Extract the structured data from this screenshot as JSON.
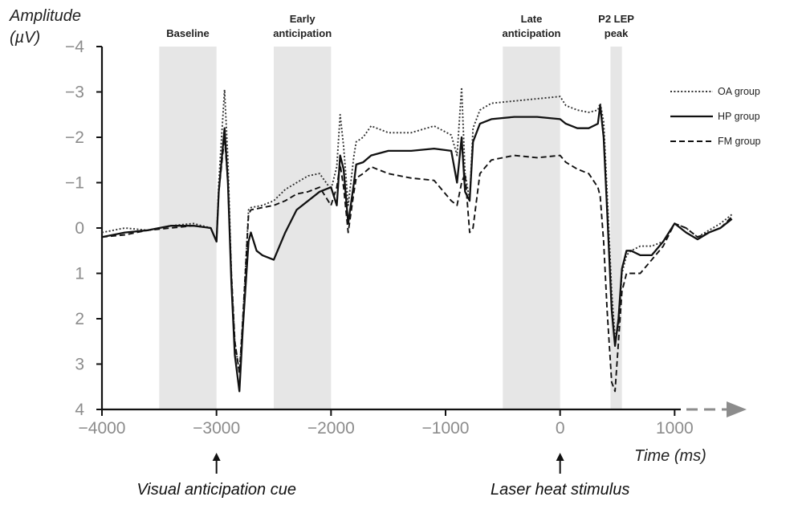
{
  "chart_data": {
    "type": "line",
    "title": "",
    "ylabel_lines": [
      "Amplitude",
      "(µV)"
    ],
    "xlabel": "Time (ms)",
    "xlim": [
      -4000,
      1500
    ],
    "ylim": [
      4,
      -4
    ],
    "y_inverted": true,
    "grid": false,
    "legend_position": "right",
    "x_ticks": [
      {
        "value": -4000,
        "label": "−4000"
      },
      {
        "value": -3000,
        "label": "−3000"
      },
      {
        "value": -2000,
        "label": "−2000"
      },
      {
        "value": -1000,
        "label": "−1000"
      },
      {
        "value": 0,
        "label": "0"
      },
      {
        "value": 1000,
        "label": "1000"
      }
    ],
    "y_ticks": [
      {
        "value": -4,
        "label": "−4"
      },
      {
        "value": -3,
        "label": "−3"
      },
      {
        "value": -2,
        "label": "−2"
      },
      {
        "value": -1,
        "label": "−1"
      },
      {
        "value": 0,
        "label": "0"
      },
      {
        "value": 1,
        "label": "1"
      },
      {
        "value": 2,
        "label": "2"
      },
      {
        "value": 3,
        "label": "3"
      },
      {
        "value": 4,
        "label": "4"
      }
    ],
    "shaded_regions": [
      {
        "label_lines": [
          "Baseline"
        ],
        "start": -3500,
        "end": -3000
      },
      {
        "label_lines": [
          "Early",
          "anticipation"
        ],
        "start": -2500,
        "end": -2000
      },
      {
        "label_lines": [
          "Late",
          "anticipation"
        ],
        "start": -500,
        "end": 0
      },
      {
        "label_lines": [
          "P2 LEP",
          "peak"
        ],
        "start": 440,
        "end": 540
      }
    ],
    "annotations": [
      {
        "text": "Visual anticipation cue",
        "x": -3000
      },
      {
        "text": "Laser heat stimulus",
        "x": 0
      }
    ],
    "series": [
      {
        "name": "OA group",
        "style": "dotted",
        "color": "#333333",
        "x": [
          -4000,
          -3800,
          -3600,
          -3400,
          -3200,
          -3050,
          -3000,
          -2980,
          -2930,
          -2900,
          -2870,
          -2840,
          -2800,
          -2770,
          -2720,
          -2700,
          -2600,
          -2500,
          -2400,
          -2300,
          -2200,
          -2100,
          -2000,
          -1950,
          -1920,
          -1890,
          -1850,
          -1800,
          -1780,
          -1720,
          -1650,
          -1500,
          -1300,
          -1100,
          -950,
          -900,
          -860,
          -830,
          -790,
          -760,
          -700,
          -600,
          -400,
          -200,
          0,
          50,
          150,
          250,
          330,
          350,
          380,
          410,
          450,
          480,
          510,
          540,
          580,
          620,
          700,
          800,
          900,
          1000,
          1100,
          1200,
          1300,
          1400,
          1500
        ],
        "y": [
          0.1,
          0.0,
          0.05,
          -0.05,
          -0.1,
          0.0,
          0.3,
          -1.0,
          -3.05,
          -1.5,
          1.0,
          2.5,
          3.2,
          2.0,
          -0.4,
          -0.45,
          -0.5,
          -0.6,
          -0.85,
          -1.0,
          -1.15,
          -1.2,
          -0.85,
          -1.35,
          -2.5,
          -1.8,
          -0.5,
          -1.6,
          -1.9,
          -2.0,
          -2.25,
          -2.1,
          -2.1,
          -2.25,
          -2.05,
          -1.6,
          -3.1,
          -1.2,
          -0.6,
          -2.2,
          -2.6,
          -2.75,
          -2.8,
          -2.85,
          -2.9,
          -2.7,
          -2.6,
          -2.55,
          -2.6,
          -2.75,
          -2.35,
          -0.8,
          1.4,
          2.4,
          2.2,
          1.0,
          0.6,
          0.5,
          0.4,
          0.4,
          0.3,
          -0.1,
          0.0,
          0.2,
          0.05,
          -0.1,
          -0.3
        ]
      },
      {
        "name": "HP group",
        "style": "solid",
        "color": "#111111",
        "x": [
          -4000,
          -3800,
          -3600,
          -3400,
          -3200,
          -3050,
          -3000,
          -2980,
          -2930,
          -2900,
          -2870,
          -2840,
          -2800,
          -2770,
          -2720,
          -2700,
          -2650,
          -2600,
          -2500,
          -2400,
          -2300,
          -2200,
          -2100,
          -2000,
          -1950,
          -1920,
          -1890,
          -1850,
          -1800,
          -1780,
          -1720,
          -1650,
          -1500,
          -1300,
          -1100,
          -950,
          -900,
          -860,
          -830,
          -790,
          -760,
          -700,
          -600,
          -400,
          -200,
          0,
          50,
          150,
          250,
          330,
          350,
          380,
          410,
          450,
          480,
          510,
          540,
          580,
          620,
          700,
          800,
          900,
          1000,
          1100,
          1200,
          1300,
          1400,
          1500
        ],
        "y": [
          0.2,
          0.1,
          0.05,
          -0.05,
          -0.05,
          0.0,
          0.3,
          -0.8,
          -2.2,
          -1.0,
          1.2,
          2.8,
          3.6,
          2.2,
          0.3,
          0.1,
          0.5,
          0.6,
          0.7,
          0.1,
          -0.4,
          -0.6,
          -0.8,
          -0.9,
          -0.5,
          -1.6,
          -1.3,
          -0.1,
          -1.0,
          -1.4,
          -1.45,
          -1.6,
          -1.7,
          -1.7,
          -1.75,
          -1.7,
          -1.0,
          -2.0,
          -0.8,
          -0.6,
          -1.9,
          -2.3,
          -2.4,
          -2.45,
          -2.45,
          -2.4,
          -2.3,
          -2.2,
          -2.2,
          -2.3,
          -2.7,
          -2.0,
          -0.4,
          1.8,
          2.6,
          2.0,
          0.9,
          0.5,
          0.5,
          0.6,
          0.6,
          0.3,
          -0.1,
          0.1,
          0.25,
          0.1,
          0.0,
          -0.2
        ]
      },
      {
        "name": "FM group",
        "style": "dashed",
        "color": "#111111",
        "x": [
          -4000,
          -3800,
          -3600,
          -3400,
          -3200,
          -3050,
          -3000,
          -2980,
          -2930,
          -2900,
          -2870,
          -2840,
          -2800,
          -2770,
          -2720,
          -2700,
          -2600,
          -2500,
          -2400,
          -2300,
          -2200,
          -2100,
          -2000,
          -1950,
          -1920,
          -1890,
          -1850,
          -1800,
          -1780,
          -1720,
          -1650,
          -1500,
          -1300,
          -1100,
          -950,
          -900,
          -860,
          -830,
          -790,
          -760,
          -700,
          -600,
          -400,
          -200,
          0,
          50,
          150,
          250,
          330,
          350,
          380,
          410,
          450,
          480,
          510,
          540,
          580,
          620,
          700,
          800,
          900,
          1000,
          1100,
          1200,
          1300,
          1400,
          1500
        ],
        "y": [
          0.2,
          0.15,
          0.05,
          0.0,
          -0.05,
          0.0,
          0.3,
          -0.8,
          -2.0,
          -1.0,
          1.0,
          2.5,
          3.2,
          2.0,
          -0.3,
          -0.4,
          -0.45,
          -0.5,
          -0.6,
          -0.75,
          -0.8,
          -0.9,
          -0.5,
          -0.9,
          -1.4,
          -0.9,
          0.1,
          -0.8,
          -1.1,
          -1.2,
          -1.35,
          -1.2,
          -1.1,
          -1.05,
          -0.6,
          -0.5,
          -1.0,
          -1.2,
          0.1,
          0.0,
          -1.2,
          -1.5,
          -1.6,
          -1.55,
          -1.6,
          -1.45,
          -1.3,
          -1.2,
          -0.9,
          -0.7,
          0.3,
          1.8,
          3.4,
          3.6,
          2.5,
          1.4,
          1.0,
          1.0,
          1.0,
          0.7,
          0.4,
          -0.1,
          0.0,
          0.2,
          0.1,
          0.0,
          -0.25
        ]
      }
    ]
  }
}
